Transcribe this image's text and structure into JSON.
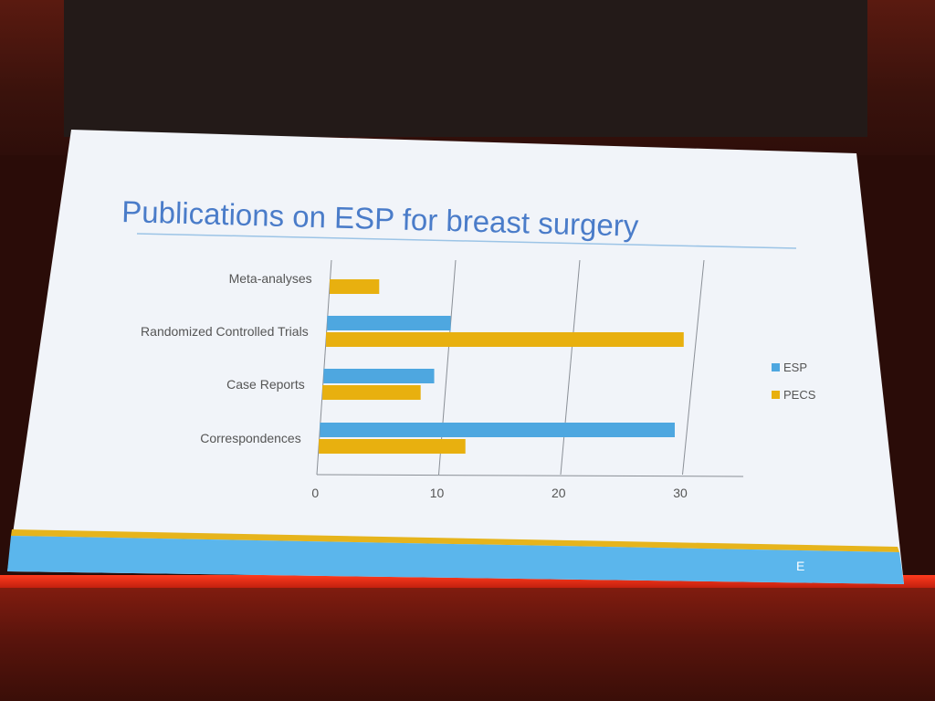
{
  "slide": {
    "title": "Publications on ESP for breast surgery",
    "footer_text": "E"
  },
  "chart_data": {
    "type": "bar",
    "orientation": "horizontal",
    "categories": [
      "Meta-analyses",
      "Randomized Controlled Trials",
      "Case Reports",
      "Correspondences"
    ],
    "series": [
      {
        "name": "ESP",
        "values": [
          0,
          10,
          9,
          29
        ],
        "color": "#4ea7e0"
      },
      {
        "name": "PECS",
        "values": [
          4,
          29,
          8,
          12
        ],
        "color": "#e8b00f"
      }
    ],
    "xlim": [
      0,
      35
    ],
    "xticks": [
      0,
      10,
      20,
      30
    ],
    "grid": true,
    "legend_position": "right"
  },
  "colors": {
    "slide_bg": "#f1f4f9",
    "title": "#4a7cc9",
    "footer_band": "#5bb6ec",
    "footer_stripe": "#e6b41c"
  }
}
